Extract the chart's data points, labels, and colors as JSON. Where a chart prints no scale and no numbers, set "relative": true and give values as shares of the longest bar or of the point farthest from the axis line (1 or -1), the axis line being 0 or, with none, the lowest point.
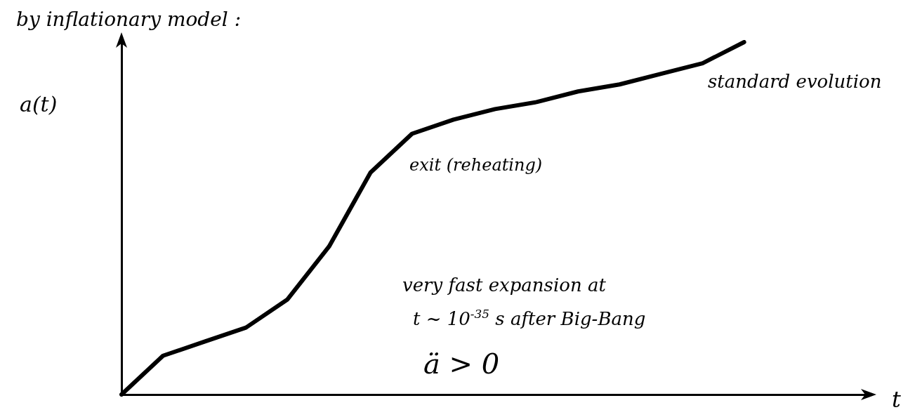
{
  "chart_data": {
    "type": "line",
    "relative": true,
    "title": "by inflationary model :",
    "xlabel": "t",
    "ylabel": "a(t)",
    "categories": [
      null,
      null,
      null,
      null,
      null,
      null,
      null,
      null,
      null,
      null,
      null,
      null,
      null,
      null,
      null,
      null,
      null,
      null,
      null
    ],
    "series": [
      {
        "color": "#000000",
        "values": [
          0,
          0.11,
          0.15,
          0.19,
          0.27,
          0.42,
          0.63,
          0.74,
          0.78,
          0.81,
          0.83,
          0.86,
          0.88,
          0.91,
          0.94,
          1.0,
          null,
          null,
          null
        ]
      }
    ],
    "annotations": [
      "standard evolution",
      "exit (reheating)",
      "very fast expansion at",
      "t ~ 10$^{-35}$ s after Big-Bang",
      "ä > 0"
    ],
    "marker": "none",
    "line_style": "solid",
    "grid": false
  }
}
